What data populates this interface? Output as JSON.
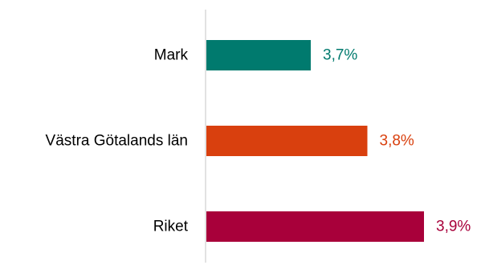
{
  "chart_data": {
    "type": "bar",
    "orientation": "horizontal",
    "categories": [
      "Mark",
      "Västra Götalands län",
      "Riket"
    ],
    "values": [
      3.7,
      3.8,
      3.9
    ],
    "value_labels": [
      "3,7%",
      "3,8%",
      "3,9%"
    ],
    "colors": [
      "#007a6e",
      "#d9400e",
      "#a8003a"
    ],
    "axis_color": "#d9d9d9",
    "grid": false,
    "legend": "none"
  }
}
